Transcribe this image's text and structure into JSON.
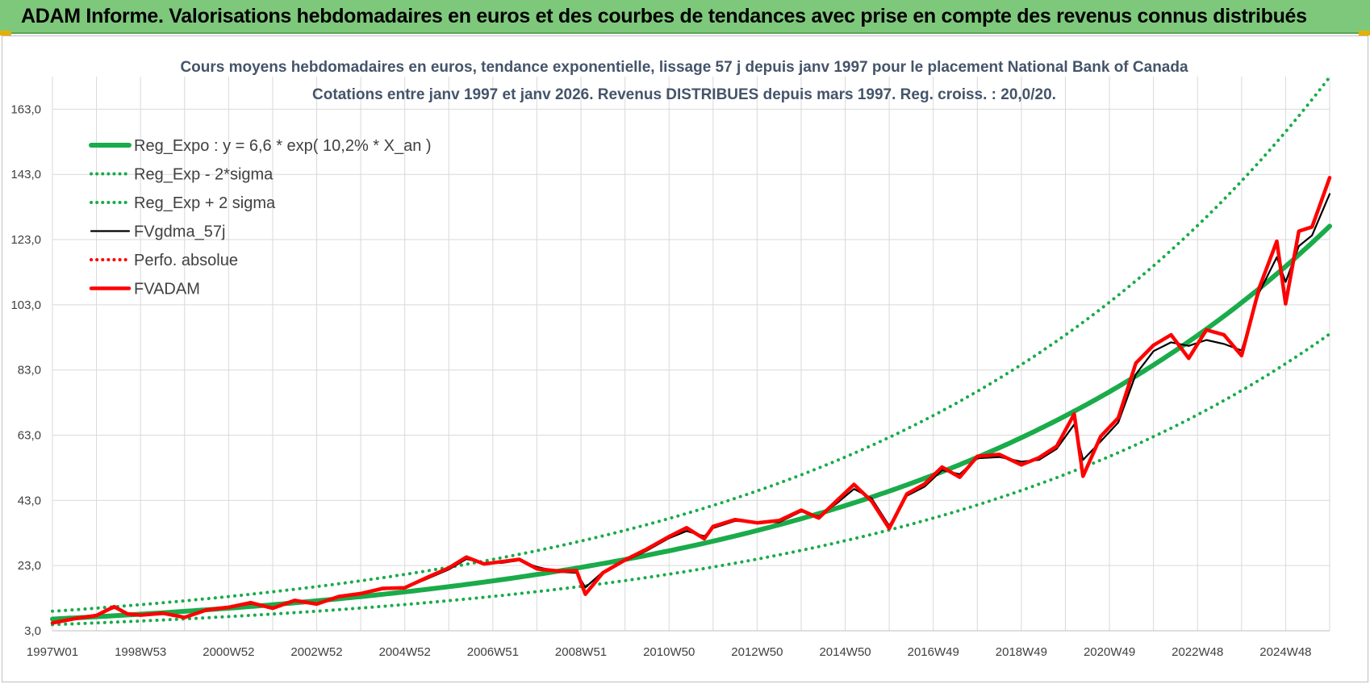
{
  "banner": {
    "text": "ADAM Informe. Valorisations hebdomadaires en euros et des courbes de tendances avec prise en compte des revenus connus distribués"
  },
  "colors": {
    "banner_bg": "#7ec87c",
    "regression": "#1aab4a",
    "series_black": "#000000",
    "series_red": "#ff0000",
    "grid": "#d9d9d9"
  },
  "chart_data": {
    "type": "line",
    "title": [
      "Cours moyens hebdomadaires en euros, tendance exponentielle, lissage 57 j depuis janv 1997  pour le placement National Bank of Canada",
      "Cotations entre janv 1997 et janv 2026. Revenus DISTRIBUES depuis mars 1997.  Reg. croiss. : 20,0/20."
    ],
    "xlabel": "",
    "ylabel": "",
    "ylim": [
      3,
      173
    ],
    "xlim": [
      1997.0,
      2026.0
    ],
    "grid": true,
    "legend_position": "top-left",
    "y_ticks": [
      "3,0",
      "23,0",
      "43,0",
      "63,0",
      "83,0",
      "103,0",
      "123,0",
      "143,0",
      "163,0"
    ],
    "y_tick_values": [
      3,
      23,
      43,
      63,
      83,
      103,
      123,
      143,
      163
    ],
    "x_ticks": [
      "1997W01",
      "1998W53",
      "2000W52",
      "2002W52",
      "2004W52",
      "2006W51",
      "2008W51",
      "2010W50",
      "2012W50",
      "2014W50",
      "2016W49",
      "2018W49",
      "2020W49",
      "2022W48",
      "2024W48"
    ],
    "x_tick_values": [
      1997.0,
      1999.0,
      2001.0,
      2003.0,
      2005.0,
      2007.0,
      2009.0,
      2011.0,
      2013.0,
      2015.0,
      2017.0,
      2019.0,
      2021.0,
      2023.0,
      2025.0
    ],
    "regression": {
      "a": 6.6,
      "rate": 0.102
    },
    "series": [
      {
        "name": "Reg_Expo : y = 6,6 * exp( 10,2% *  X_an )",
        "style": "solid-thick",
        "color": "#1aab4a",
        "x": [
          1997.0,
          2026.0
        ],
        "factor": 1.0
      },
      {
        "name": "Reg_Exp - 2*sigma",
        "style": "dotted",
        "color": "#1aab4a",
        "x": [
          1997.0,
          2026.0
        ],
        "factor": 0.74
      },
      {
        "name": "Reg_Exp + 2 sigma",
        "style": "dotted",
        "color": "#1aab4a",
        "x": [
          1997.0,
          2026.0
        ],
        "factor": 1.36
      },
      {
        "name": "FVgdma_57j",
        "style": "solid",
        "color": "#000000",
        "x": [
          1997.0,
          1997.5,
          1998.0,
          1998.4,
          1998.7,
          1999.0,
          1999.5,
          2000.0,
          2000.5,
          2001.0,
          2001.5,
          2002.0,
          2002.5,
          2003.0,
          2003.5,
          2004.0,
          2004.5,
          2005.0,
          2005.5,
          2006.0,
          2006.4,
          2006.8,
          2007.2,
          2007.6,
          2008.0,
          2008.5,
          2008.9,
          2009.1,
          2009.5,
          2010.0,
          2010.5,
          2011.0,
          2011.4,
          2011.8,
          2012.0,
          2012.5,
          2013.0,
          2013.5,
          2014.0,
          2014.4,
          2014.8,
          2015.2,
          2015.6,
          2016.0,
          2016.4,
          2016.8,
          2017.2,
          2017.6,
          2018.0,
          2018.5,
          2019.0,
          2019.4,
          2019.8,
          2020.2,
          2020.4,
          2020.8,
          2021.2,
          2021.6,
          2022.0,
          2022.4,
          2022.8,
          2023.2,
          2023.6,
          2024.0,
          2024.4,
          2024.8,
          2025.0,
          2025.3,
          2025.6,
          2026.0
        ],
        "y": [
          5.5,
          6.8,
          7.6,
          10.0,
          8.4,
          7.9,
          8.3,
          7.3,
          9.3,
          10.1,
          11.3,
          10.1,
          12.1,
          11.4,
          13.3,
          14.2,
          15.7,
          16.1,
          18.9,
          21.8,
          25.0,
          23.8,
          23.8,
          24.6,
          22.6,
          21.1,
          20.8,
          16.3,
          21.1,
          24.4,
          27.6,
          31.4,
          33.6,
          32.0,
          34.5,
          36.7,
          36.3,
          36.3,
          39.6,
          38.1,
          42.0,
          46.5,
          43.6,
          35.2,
          44.4,
          47.2,
          52.3,
          51.0,
          55.9,
          56.3,
          54.9,
          55.4,
          58.8,
          66.3,
          55.4,
          61.1,
          66.9,
          81.7,
          88.8,
          91.5,
          90.4,
          92.2,
          91.0,
          89.0,
          106.8,
          117.6,
          110.0,
          121.0,
          124.3,
          137.0
        ]
      },
      {
        "name": "Perfo. absolue",
        "style": "dotted",
        "color": "#ff0000",
        "x": [
          1997.0,
          1997.5,
          1998.0,
          1998.4,
          1998.7,
          1999.0,
          1999.5,
          2000.0,
          2000.5,
          2001.0,
          2001.5,
          2002.0,
          2002.5,
          2003.0,
          2003.5,
          2004.0,
          2004.5,
          2005.0,
          2005.5,
          2006.0,
          2006.4,
          2006.8,
          2007.2,
          2007.6,
          2008.0,
          2008.5,
          2008.9,
          2009.1,
          2009.5,
          2010.0,
          2010.5,
          2011.0,
          2011.4,
          2011.8,
          2012.0,
          2012.5,
          2013.0,
          2013.5,
          2014.0,
          2014.4,
          2014.8,
          2015.2,
          2015.6,
          2016.0,
          2016.4,
          2016.8,
          2017.2,
          2017.6,
          2018.0,
          2018.5,
          2019.0,
          2019.4,
          2019.8,
          2020.2,
          2020.4,
          2020.8,
          2021.2,
          2021.6,
          2022.0,
          2022.4,
          2022.8,
          2023.2,
          2023.6,
          2024.0,
          2024.4,
          2024.8,
          2025.0,
          2025.3,
          2025.6,
          2026.0
        ],
        "y": [
          5.4,
          6.7,
          7.7,
          10.4,
          8.2,
          7.8,
          8.4,
          7.1,
          9.4,
          10.2,
          11.6,
          9.9,
          12.3,
          11.2,
          13.5,
          14.4,
          16.0,
          16.2,
          19.3,
          22.3,
          25.6,
          23.5,
          24.2,
          24.9,
          22.0,
          21.3,
          21.4,
          14.2,
          20.8,
          24.7,
          28.1,
          31.9,
          34.6,
          31.2,
          35.0,
          37.1,
          36.1,
          36.8,
          40.0,
          37.6,
          42.8,
          47.9,
          42.8,
          34.4,
          45.0,
          48.0,
          53.2,
          50.1,
          56.5,
          57.1,
          53.9,
          56.1,
          59.6,
          69.5,
          50.4,
          62.6,
          68.3,
          85.1,
          90.6,
          93.8,
          86.6,
          95.3,
          93.8,
          87.4,
          108.2,
          122.5,
          103.3,
          125.6,
          126.9,
          142.0
        ]
      },
      {
        "name": "FVADAM",
        "style": "solid-thick",
        "color": "#ff0000",
        "x": [
          1997.0,
          1997.5,
          1998.0,
          1998.4,
          1998.7,
          1999.0,
          1999.5,
          2000.0,
          2000.5,
          2001.0,
          2001.5,
          2002.0,
          2002.5,
          2003.0,
          2003.5,
          2004.0,
          2004.5,
          2005.0,
          2005.5,
          2006.0,
          2006.4,
          2006.8,
          2007.2,
          2007.6,
          2008.0,
          2008.5,
          2008.9,
          2009.1,
          2009.5,
          2010.0,
          2010.5,
          2011.0,
          2011.4,
          2011.8,
          2012.0,
          2012.5,
          2013.0,
          2013.5,
          2014.0,
          2014.4,
          2014.8,
          2015.2,
          2015.6,
          2016.0,
          2016.4,
          2016.8,
          2017.2,
          2017.6,
          2018.0,
          2018.5,
          2019.0,
          2019.4,
          2019.8,
          2020.2,
          2020.4,
          2020.8,
          2021.2,
          2021.6,
          2022.0,
          2022.4,
          2022.8,
          2023.2,
          2023.6,
          2024.0,
          2024.4,
          2024.8,
          2025.0,
          2025.3,
          2025.6,
          2026.0
        ],
        "y": [
          5.4,
          6.7,
          7.7,
          10.4,
          8.2,
          7.8,
          8.4,
          7.1,
          9.4,
          10.2,
          11.6,
          9.9,
          12.3,
          11.2,
          13.5,
          14.4,
          16.0,
          16.2,
          19.3,
          22.3,
          25.6,
          23.5,
          24.2,
          24.9,
          22.0,
          21.3,
          21.4,
          14.2,
          20.8,
          24.7,
          28.1,
          31.9,
          34.6,
          31.2,
          35.0,
          37.1,
          36.1,
          36.8,
          40.0,
          37.6,
          42.8,
          47.9,
          42.8,
          34.4,
          45.0,
          48.0,
          53.2,
          50.1,
          56.5,
          57.1,
          53.9,
          56.1,
          59.6,
          69.5,
          50.4,
          62.6,
          68.3,
          85.1,
          90.6,
          93.8,
          86.6,
          95.3,
          93.8,
          87.4,
          108.2,
          122.5,
          103.3,
          125.6,
          126.9,
          142.0
        ]
      }
    ]
  }
}
